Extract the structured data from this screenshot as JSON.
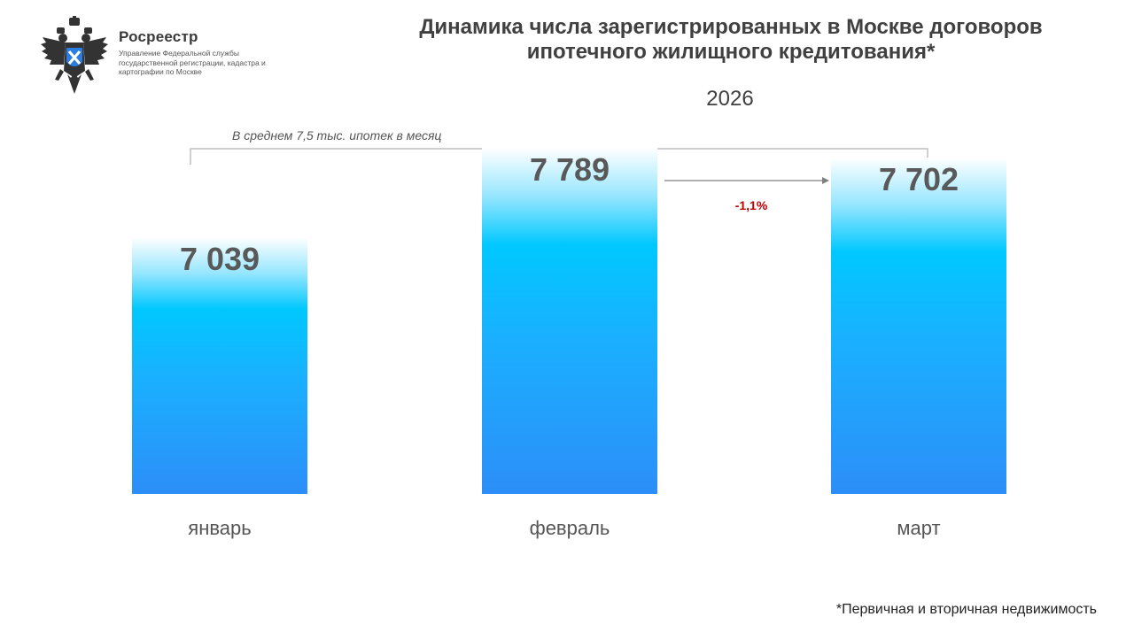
{
  "logo": {
    "icon": "double-headed-eagle-emblem-icon",
    "name": "Росреестр",
    "subtitle": "Управление Федеральной службы государственной регистрации, кадастра и картографии по Москве"
  },
  "chart_data": {
    "type": "bar",
    "title": "Динамика числа зарегистрированных в Москве договоров ипотечного жилищного кредитования*",
    "subtitle": "2026",
    "categories": [
      "январь",
      "февраль",
      "март"
    ],
    "values": [
      7039,
      7789,
      7702
    ],
    "value_labels": [
      "7 039",
      "7 789",
      "7 702"
    ],
    "xlabel": "",
    "ylabel": "",
    "grid": false,
    "annotations": {
      "average": "В среднем 7,5 тыс. ипотек в месяц",
      "change": "-1,1%",
      "change_from": "февраль",
      "change_to": "март"
    },
    "footnote": "*Первичная и вторичная недвижимость",
    "colors": {
      "bar_top": "#ffffff",
      "bar_mid": "#00c8ff",
      "bar_bottom": "#2c8ef8",
      "change": "#c00000"
    }
  }
}
